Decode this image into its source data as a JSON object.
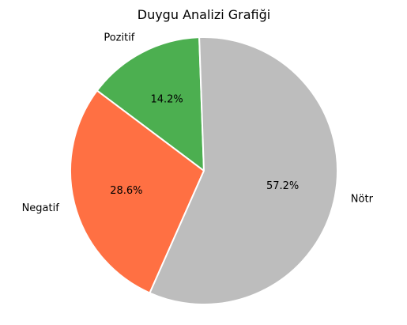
{
  "chart_data": {
    "type": "pie",
    "title": "Duygu Analizi Grafiği",
    "slices": [
      {
        "label": "Pozitif",
        "value": 14.2,
        "pct_label": "14.2%",
        "color": "#4caf50"
      },
      {
        "label": "Negatif",
        "value": 28.6,
        "pct_label": "28.6%",
        "color": "#ff7043"
      },
      {
        "label": "Nötr",
        "value": 57.2,
        "pct_label": "57.2%",
        "color": "#bdbdbd"
      }
    ],
    "start_angle_deg": 92,
    "direction": "counterclockwise",
    "edge_color": "#ffffff",
    "legend": "none"
  }
}
